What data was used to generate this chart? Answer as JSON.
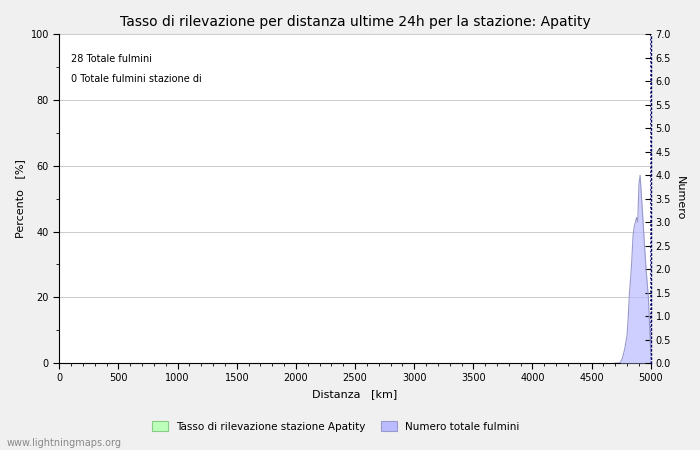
{
  "title": "Tasso di rilevazione per distanza ultime 24h per la stazione: Apatity",
  "annotation_line1": "28 Totale fulmini",
  "annotation_line2": "0 Totale fulmini stazione di",
  "xlabel": "Distanza   [km]",
  "ylabel_left": "Percento   [%]",
  "ylabel_right": "Numero",
  "xlim": [
    0,
    5000
  ],
  "ylim_left": [
    0,
    100
  ],
  "ylim_right": [
    0,
    7.0
  ],
  "yticks_left": [
    0,
    20,
    40,
    60,
    80,
    100
  ],
  "yticks_right": [
    0.0,
    0.5,
    1.0,
    1.5,
    2.0,
    2.5,
    3.0,
    3.5,
    4.0,
    4.5,
    5.0,
    5.5,
    6.0,
    6.5,
    7.0
  ],
  "xticks": [
    0,
    500,
    1000,
    1500,
    2000,
    2500,
    3000,
    3500,
    4000,
    4500,
    5000
  ],
  "minor_yticks_left": [
    10,
    30,
    50,
    70,
    90
  ],
  "step_x": [
    4700,
    4720,
    4740,
    4760,
    4780,
    4800,
    4810,
    4820,
    4830,
    4840,
    4850,
    4860,
    4870,
    4880,
    4890,
    4900,
    4910,
    4920,
    4930,
    4940,
    4950,
    4960,
    4970,
    4980,
    4990,
    5000
  ],
  "step_y": [
    0.0,
    0.0,
    0.0,
    0.1,
    0.3,
    0.6,
    1.0,
    1.5,
    1.8,
    2.2,
    2.7,
    2.9,
    3.0,
    3.1,
    3.0,
    3.8,
    4.0,
    3.6,
    3.2,
    2.8,
    2.4,
    2.0,
    1.7,
    1.4,
    0.8,
    0.2
  ],
  "bar_color": "#bbbbff",
  "bar_edge_color": "#9999cc",
  "legend_bar_label": "Tasso di rilevazione stazione Apatity",
  "legend_bar2_label": "Numero totale fulmini",
  "legend_bar_color": "#bbffbb",
  "legend_bar2_color": "#bbbbff",
  "grid_color": "#cccccc",
  "background_color": "#f0f0f0",
  "plot_bg_color": "#ffffff",
  "watermark": "www.lightningmaps.org",
  "title_fontsize": 10,
  "axis_label_fontsize": 8,
  "tick_fontsize": 7,
  "annotation_fontsize": 7,
  "dotted_line_color": "#000066"
}
